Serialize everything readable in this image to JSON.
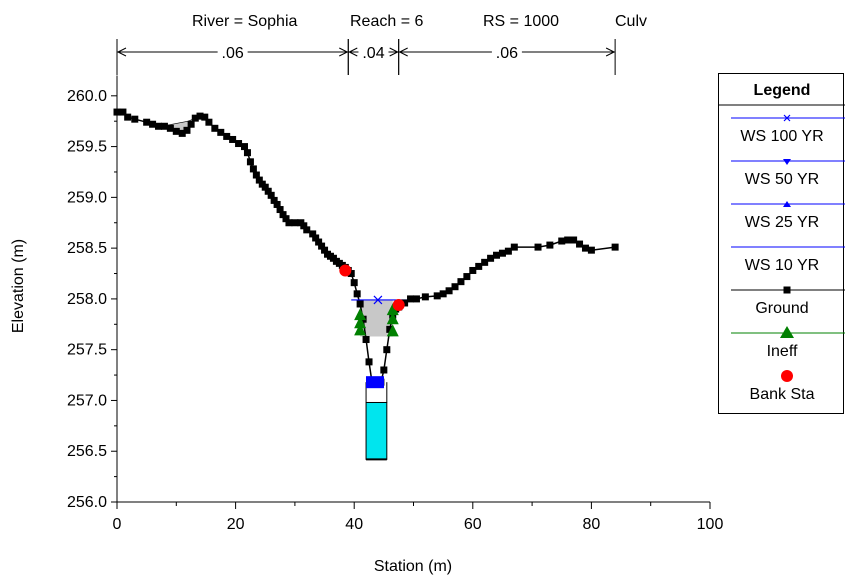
{
  "header": {
    "river": "River = Sophia",
    "reach": "Reach = 6",
    "rs": "RS = 1000",
    "type": "Culv"
  },
  "manning": [
    {
      "label": ".06",
      "from": 0,
      "to": 39
    },
    {
      "label": ".04",
      "from": 39,
      "to": 47.5
    },
    {
      "label": ".06",
      "from": 47.5,
      "to": 84
    }
  ],
  "colors": {
    "ws": "#0000ff",
    "ground": "#000000",
    "ineff": "#008000",
    "bank": "#ff0000",
    "culvert_fill": "#00e5ee",
    "area_fill": "#c8c8c8"
  },
  "chart_data": {
    "type": "line",
    "xlabel": "Station (m)",
    "ylabel": "Elevation (m)",
    "xlim": [
      0,
      100
    ],
    "ylim": [
      256.0,
      260.2
    ],
    "xticks": [
      0,
      20,
      40,
      60,
      80,
      100
    ],
    "yticks": [
      256.0,
      256.5,
      257.0,
      257.5,
      258.0,
      258.5,
      259.0,
      259.5,
      260.0
    ],
    "ground": [
      [
        0,
        259.84
      ],
      [
        1,
        259.84
      ],
      [
        1.8,
        259.79
      ],
      [
        3,
        259.77
      ],
      [
        5,
        259.74
      ],
      [
        6,
        259.72
      ],
      [
        7,
        259.7
      ],
      [
        8,
        259.7
      ],
      [
        9,
        259.68
      ],
      [
        10,
        259.65
      ],
      [
        11,
        259.63
      ],
      [
        11.8,
        259.66
      ],
      [
        12.5,
        259.72
      ],
      [
        13.2,
        259.78
      ],
      [
        14,
        259.8
      ],
      [
        14.8,
        259.79
      ],
      [
        15.5,
        259.74
      ],
      [
        16.5,
        259.68
      ],
      [
        17.5,
        259.64
      ],
      [
        18.5,
        259.6
      ],
      [
        19.5,
        259.57
      ],
      [
        20.5,
        259.53
      ],
      [
        21.5,
        259.5
      ],
      [
        22,
        259.44
      ],
      [
        22.5,
        259.35
      ],
      [
        23,
        259.28
      ],
      [
        23.5,
        259.22
      ],
      [
        24,
        259.17
      ],
      [
        24.5,
        259.13
      ],
      [
        25,
        259.1
      ],
      [
        25.5,
        259.06
      ],
      [
        26,
        259.02
      ],
      [
        26.5,
        258.97
      ],
      [
        27,
        258.93
      ],
      [
        27.5,
        258.88
      ],
      [
        28,
        258.83
      ],
      [
        28.5,
        258.79
      ],
      [
        29,
        258.75
      ],
      [
        30,
        258.75
      ],
      [
        31,
        258.75
      ],
      [
        31.5,
        258.72
      ],
      [
        32,
        258.68
      ],
      [
        33,
        258.64
      ],
      [
        33.5,
        258.6
      ],
      [
        34,
        258.56
      ],
      [
        34.5,
        258.52
      ],
      [
        35,
        258.48
      ],
      [
        35.5,
        258.44
      ],
      [
        36,
        258.42
      ],
      [
        36.5,
        258.4
      ],
      [
        37,
        258.37
      ],
      [
        37.5,
        258.35
      ],
      [
        38,
        258.33
      ],
      [
        38.5,
        258.31
      ],
      [
        39,
        258.28
      ],
      [
        39.5,
        258.25
      ],
      [
        40,
        258.16
      ],
      [
        40.5,
        258.05
      ],
      [
        41,
        257.95
      ],
      [
        41.5,
        257.8
      ],
      [
        42,
        257.6
      ],
      [
        42.5,
        257.38
      ],
      [
        43,
        257.18
      ],
      [
        43.5,
        257.18
      ],
      [
        44,
        257.18
      ],
      [
        44.5,
        257.18
      ],
      [
        45,
        257.3
      ],
      [
        45.5,
        257.5
      ],
      [
        46,
        257.7
      ],
      [
        46.5,
        257.84
      ],
      [
        47,
        257.9
      ],
      [
        47.5,
        257.92
      ],
      [
        48.5,
        257.96
      ],
      [
        49.5,
        258.0
      ],
      [
        50.5,
        258.0
      ],
      [
        52,
        258.02
      ],
      [
        54,
        258.03
      ],
      [
        55,
        258.05
      ],
      [
        56,
        258.08
      ],
      [
        57,
        258.12
      ],
      [
        58,
        258.17
      ],
      [
        59,
        258.22
      ],
      [
        60,
        258.28
      ],
      [
        61,
        258.32
      ],
      [
        62,
        258.36
      ],
      [
        63,
        258.4
      ],
      [
        64,
        258.43
      ],
      [
        65,
        258.45
      ],
      [
        66,
        258.47
      ],
      [
        67,
        258.51
      ],
      [
        71,
        258.51
      ],
      [
        73,
        258.53
      ],
      [
        75,
        258.57
      ],
      [
        76,
        258.58
      ],
      [
        77,
        258.58
      ],
      [
        78,
        258.54
      ],
      [
        79,
        258.5
      ],
      [
        80,
        258.48
      ],
      [
        84,
        258.51
      ]
    ],
    "culvert": {
      "left": 42,
      "right": 45.5,
      "invert": 256.42,
      "water": 256.98
    },
    "series": [
      {
        "name": "WS 100 YR",
        "elev": 257.99
      },
      {
        "name": "WS 50 YR",
        "elev": 257.99
      },
      {
        "name": "WS 25 YR",
        "elev": 257.99
      },
      {
        "name": "WS 10 YR",
        "elev": 257.99
      },
      {
        "name": "Ground"
      },
      {
        "name": "Ineff",
        "points": [
          [
            41,
            257.84
          ],
          [
            41,
            257.76
          ],
          [
            41,
            257.69
          ],
          [
            46.5,
            257.89
          ],
          [
            46.5,
            257.8
          ],
          [
            46.5,
            257.68
          ]
        ]
      },
      {
        "name": "Bank Sta",
        "points": [
          [
            38.5,
            258.28
          ],
          [
            47.5,
            257.94
          ]
        ]
      }
    ],
    "legend_title": "Legend",
    "legend_position": "right"
  }
}
